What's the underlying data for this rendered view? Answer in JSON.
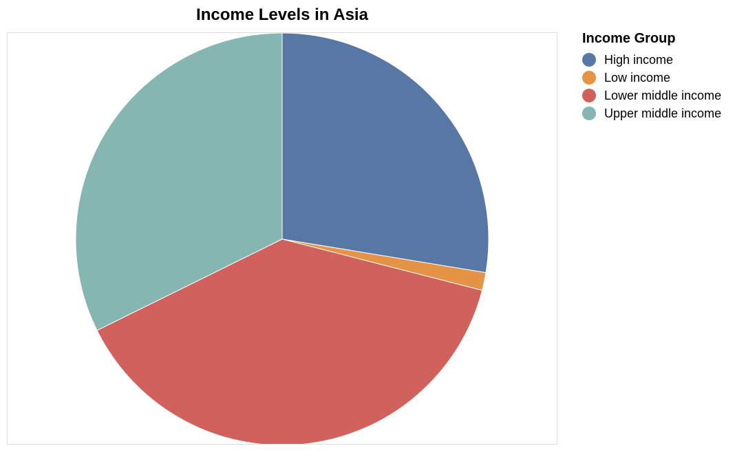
{
  "chart_data": {
    "type": "pie",
    "title": "Income Levels in Asia",
    "legend_title": "Income Group",
    "legend_position": "right",
    "start_angle": "12 o'clock",
    "direction": "clockwise",
    "slices": [
      {
        "label": "High income",
        "value": 27.6,
        "color": "#5778a4"
      },
      {
        "label": "Low income",
        "value": 1.4,
        "color": "#e49444"
      },
      {
        "label": "Lower middle income",
        "value": 38.7,
        "color": "#d1615d"
      },
      {
        "label": "Upper middle income",
        "value": 32.3,
        "color": "#85b6b2"
      }
    ]
  }
}
